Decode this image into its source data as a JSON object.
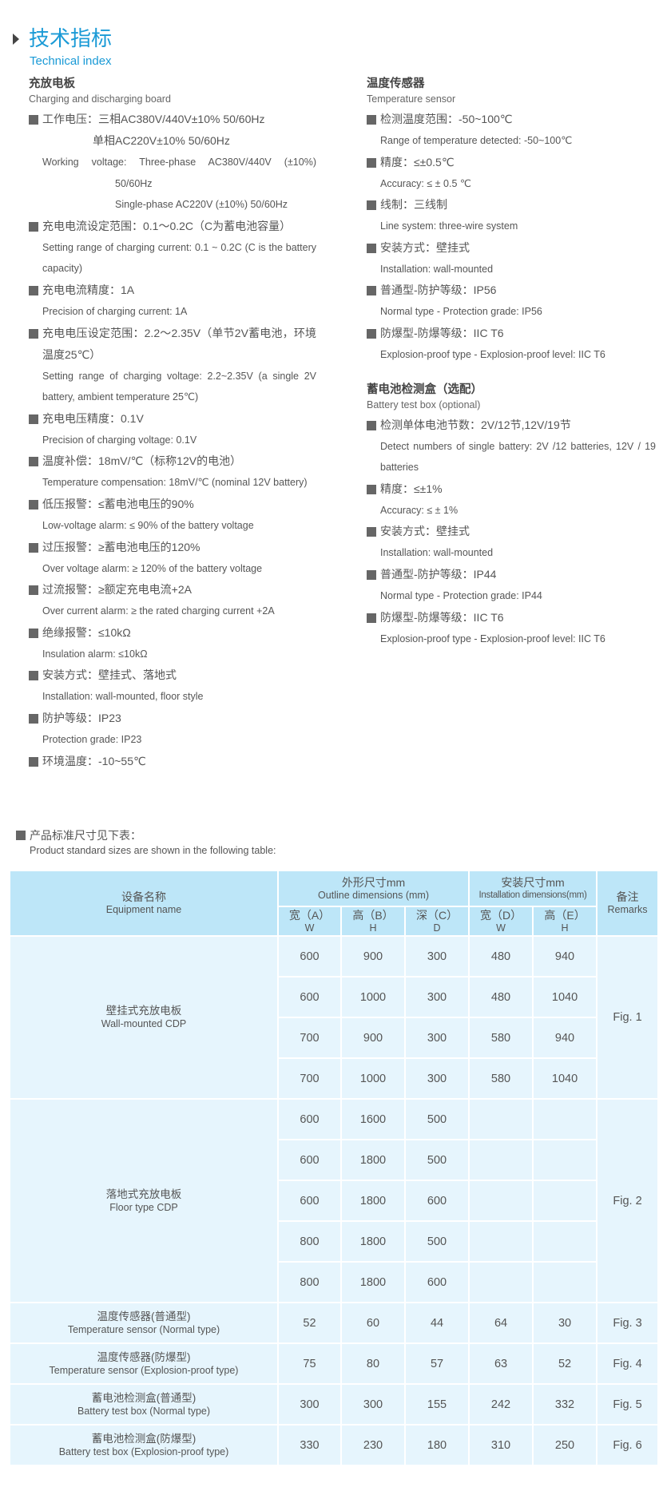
{
  "header": {
    "title": "技术指标",
    "subtitle": "Technical index"
  },
  "left": {
    "heading": "充放电板",
    "heading_en": "Charging and discharging board",
    "working_voltage": {
      "zh1": "工作电压：三相AC380V/440V±10%  50/60Hz",
      "zh2": "单相AC220V±10%   50/60Hz",
      "en1": "Working voltage: Three-phase AC380V/440V (±10%)",
      "en2": "50/60Hz",
      "en3": "Single-phase AC220V (±10%) 50/60Hz"
    },
    "items": [
      {
        "zh": "充电电流设定范围：0.1～0.2C（C为蓄电池容量）",
        "en": "Setting range of charging current: 0.1 ~ 0.2C (C is the battery capacity)"
      },
      {
        "zh": "充电电流精度：1A",
        "en": "Precision of charging current: 1A"
      },
      {
        "zh": "充电电压设定范围：2.2～2.35V（单节2V蓄电池，环境温度25℃）",
        "en": "Setting range of charging voltage: 2.2~2.35V (a single 2V battery, ambient temperature 25℃)"
      },
      {
        "zh": "充电电压精度：0.1V",
        "en": "Precision of charging voltage: 0.1V"
      },
      {
        "zh": "温度补偿：18mV/℃（标称12V的电池）",
        "en": "Temperature compensation: 18mV/℃ (nominal 12V battery)"
      },
      {
        "zh": "低压报警：≤蓄电池电压的90%",
        "en": "Low-voltage alarm: ≤ 90% of the battery voltage"
      },
      {
        "zh": "过压报警：≥蓄电池电压的120%",
        "en": "Over voltage alarm: ≥ 120% of the battery voltage"
      },
      {
        "zh": "过流报警：≥额定充电电流+2A",
        "en": "Over current alarm: ≥ the rated charging current +2A"
      },
      {
        "zh": "绝缘报警：≤10kΩ",
        "en": "Insulation alarm: ≤10kΩ"
      },
      {
        "zh": "安装方式：壁挂式、落地式",
        "en": "Installation: wall-mounted, floor style"
      },
      {
        "zh": "防护等级：IP23",
        "en": "Protection grade: IP23"
      },
      {
        "zh": "环境温度：-10~55℃"
      }
    ]
  },
  "right": {
    "sensor": {
      "heading": "温度传感器",
      "heading_en": "Temperature sensor",
      "items": [
        {
          "zh": "检测温度范围：-50~100℃",
          "en": "Range of temperature detected: -50~100℃"
        },
        {
          "zh": "精度：≤±0.5℃",
          "en": "Accuracy: ≤ ± 0.5 ℃"
        },
        {
          "zh": "线制：三线制",
          "en": "Line system: three-wire system"
        },
        {
          "zh": "安装方式：壁挂式",
          "en": "Installation: wall-mounted"
        },
        {
          "zh": "普通型-防护等级：IP56",
          "en": "Normal type - Protection grade: IP56"
        },
        {
          "zh": "防爆型-防爆等级：IIC T6",
          "en": "Explosion-proof type - Explosion-proof level: IIC T6"
        }
      ]
    },
    "battery": {
      "heading": "蓄电池检测盒（选配）",
      "heading_en": "Battery test box (optional)",
      "items": [
        {
          "zh": "检测单体电池节数：2V/12节,12V/19节",
          "en": "Detect numbers of single battery: 2V /12 batteries, 12V / 19 batteries"
        },
        {
          "zh": "精度：≤±1%",
          "en": "Accuracy: ≤ ± 1%"
        },
        {
          "zh": "安装方式：壁挂式",
          "en": "Installation: wall-mounted"
        },
        {
          "zh": "普通型-防护等级：IP44",
          "en": "Normal type - Protection grade: IP44"
        },
        {
          "zh": "防爆型-防爆等级：IIC T6",
          "en": "Explosion-proof type - Explosion-proof level: IIC T6"
        }
      ]
    }
  },
  "note": {
    "zh": "产品标准尺寸见下表：",
    "en": "Product standard sizes are shown in the following table:"
  },
  "table": {
    "headers": {
      "name_zh": "设备名称",
      "name_en": "Equipment name",
      "outline_zh": "外形尺寸mm",
      "outline_en": "Outline dimensions (mm)",
      "install_zh": "安装尺寸mm",
      "install_en": "Installation dimensions(mm)",
      "remarks_zh": "备注",
      "remarks_en": "Remarks",
      "cols": [
        {
          "zh": "宽（A）",
          "en": "W"
        },
        {
          "zh": "高（B）",
          "en": "H"
        },
        {
          "zh": "深（C）",
          "en": "D"
        },
        {
          "zh": "宽（D）",
          "en": "W"
        },
        {
          "zh": "高（E）",
          "en": "H"
        }
      ]
    },
    "groups": [
      {
        "zh": "壁挂式充放电板",
        "en": "Wall-mounted CDP",
        "remark": "Fig. 1",
        "rows": [
          [
            "600",
            "900",
            "300",
            "480",
            "940"
          ],
          [
            "600",
            "1000",
            "300",
            "480",
            "1040"
          ],
          [
            "700",
            "900",
            "300",
            "580",
            "940"
          ],
          [
            "700",
            "1000",
            "300",
            "580",
            "1040"
          ]
        ]
      },
      {
        "zh": "落地式充放电板",
        "en": "Floor type CDP",
        "remark": "Fig. 2",
        "rows": [
          [
            "600",
            "1600",
            "500",
            "",
            ""
          ],
          [
            "600",
            "1800",
            "500",
            "",
            ""
          ],
          [
            "600",
            "1800",
            "600",
            "",
            ""
          ],
          [
            "800",
            "1800",
            "500",
            "",
            ""
          ],
          [
            "800",
            "1800",
            "600",
            "",
            ""
          ]
        ]
      },
      {
        "zh": "温度传感器(普通型)",
        "en": "Temperature sensor (Normal type)",
        "remark": "Fig. 3",
        "rows": [
          [
            "52",
            "60",
            "44",
            "64",
            "30"
          ]
        ]
      },
      {
        "zh": "温度传感器(防爆型)",
        "en": "Temperature sensor (Explosion-proof type)",
        "remark": "Fig. 4",
        "rows": [
          [
            "75",
            "80",
            "57",
            "63",
            "52"
          ]
        ]
      },
      {
        "zh": "蓄电池检测盒(普通型)",
        "en": "Battery test box (Normal type)",
        "remark": "Fig. 5",
        "rows": [
          [
            "300",
            "300",
            "155",
            "242",
            "332"
          ]
        ]
      },
      {
        "zh": "蓄电池检测盒(防爆型)",
        "en": "Battery test box (Explosion-proof type)",
        "remark": "Fig. 6",
        "rows": [
          [
            "330",
            "230",
            "180",
            "310",
            "250"
          ]
        ]
      }
    ]
  }
}
